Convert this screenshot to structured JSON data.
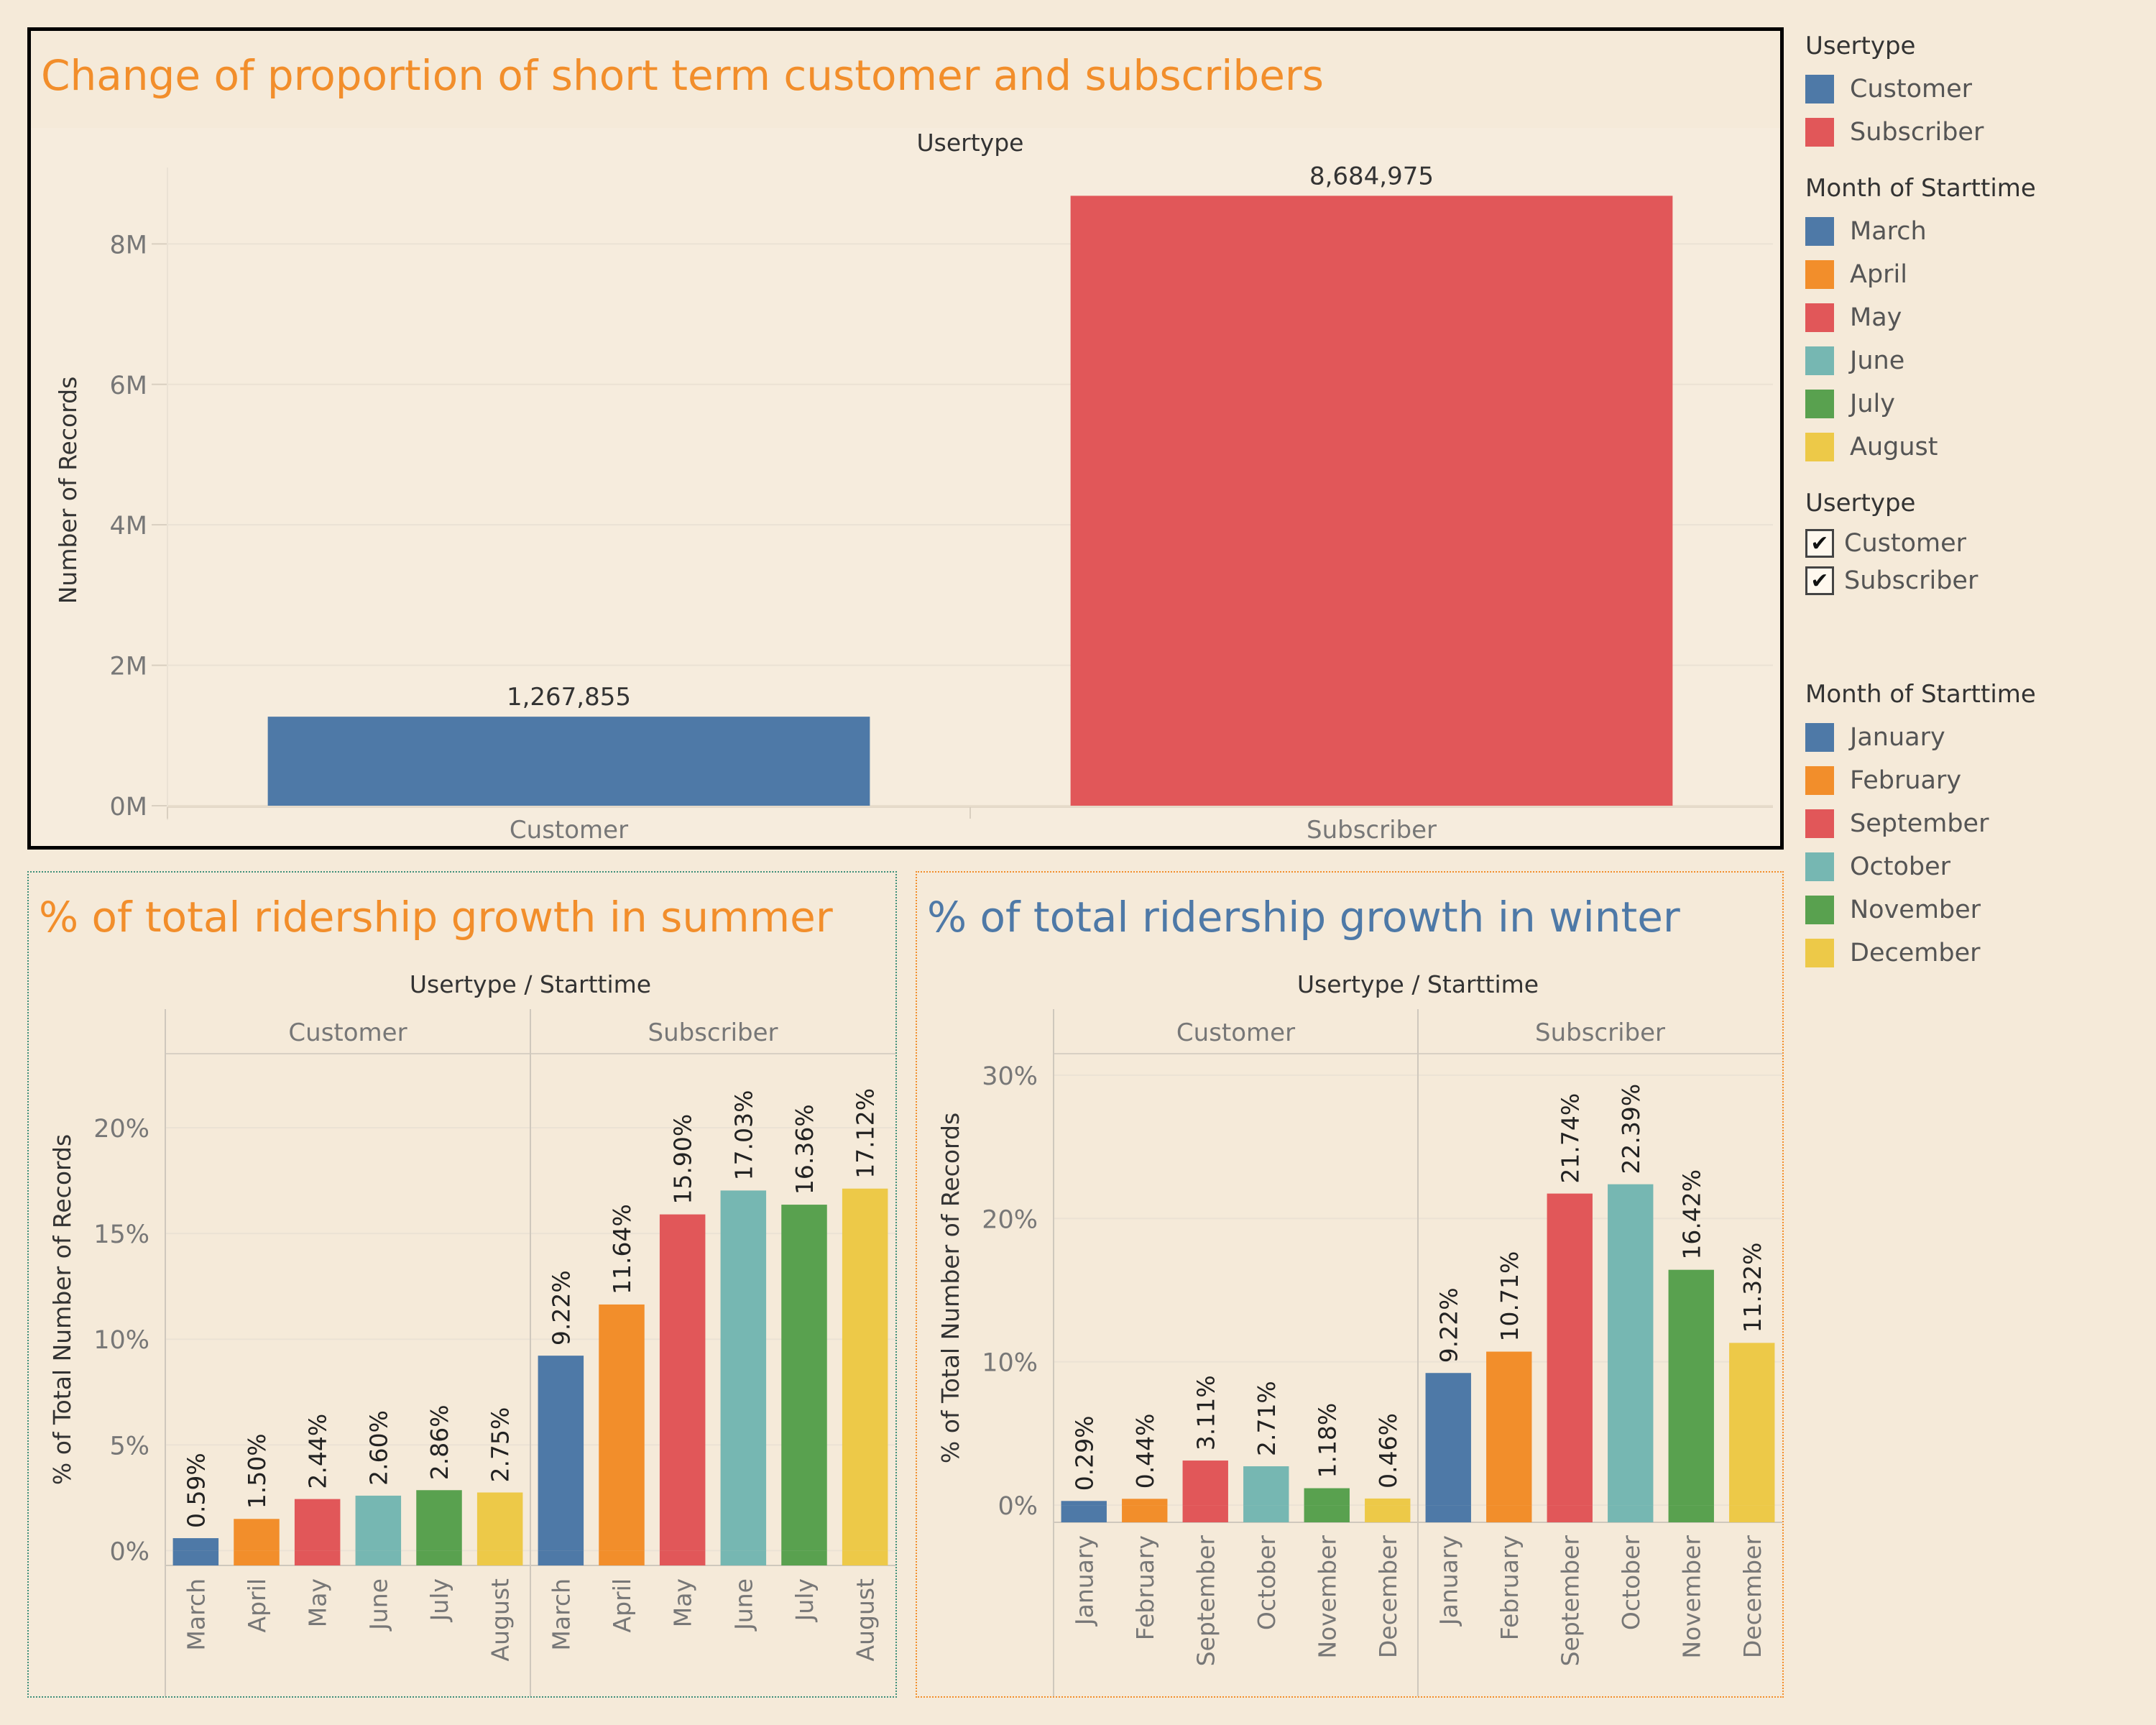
{
  "colors": {
    "blue": "#4e79a7",
    "orange": "#f28e2b",
    "red": "#e15759",
    "teal": "#76b7b2",
    "green": "#59a14f",
    "yellow": "#edc948",
    "title_orange": "#f28e2b",
    "title_blue": "#4e79a7"
  },
  "legends": {
    "usertype_color": {
      "title": "Usertype",
      "items": [
        {
          "label": "Customer",
          "color": "#4e79a7"
        },
        {
          "label": "Subscriber",
          "color": "#e15759"
        }
      ]
    },
    "month_summer": {
      "title": "Month of Starttime",
      "items": [
        {
          "label": "March",
          "color": "#4e79a7"
        },
        {
          "label": "April",
          "color": "#f28e2b"
        },
        {
          "label": "May",
          "color": "#e15759"
        },
        {
          "label": "June",
          "color": "#76b7b2"
        },
        {
          "label": "July",
          "color": "#59a14f"
        },
        {
          "label": "August",
          "color": "#edc948"
        }
      ]
    },
    "usertype_filter": {
      "title": "Usertype",
      "items": [
        {
          "label": "Customer",
          "checked": true,
          "mark": "✔"
        },
        {
          "label": "Subscriber",
          "checked": true,
          "mark": "✔"
        }
      ]
    },
    "month_winter": {
      "title": "Month of Starttime",
      "items": [
        {
          "label": "January",
          "color": "#4e79a7"
        },
        {
          "label": "February",
          "color": "#f28e2b"
        },
        {
          "label": "September",
          "color": "#e15759"
        },
        {
          "label": "October",
          "color": "#76b7b2"
        },
        {
          "label": "November",
          "color": "#59a14f"
        },
        {
          "label": "December",
          "color": "#edc948"
        }
      ]
    }
  },
  "chart_data": [
    {
      "type": "bar",
      "title": "Change of proportion of short term customer and subscribers",
      "column_header": "Usertype",
      "categories": [
        "Customer",
        "Subscriber"
      ],
      "values": [
        1267855,
        8684975
      ],
      "value_labels": [
        "1,267,855",
        "8,684,975"
      ],
      "colors": [
        "#4e79a7",
        "#e15759"
      ],
      "ylabel": "Number of Records",
      "yticks": [
        0,
        2000000,
        4000000,
        6000000,
        8000000
      ],
      "ytick_labels": [
        "0M",
        "2M",
        "4M",
        "6M",
        "8M"
      ],
      "ylim": [
        0,
        9600000
      ],
      "grid": true
    },
    {
      "type": "bar",
      "title": "% of total ridership growth in summer",
      "column_header": "Usertype  /  Starttime",
      "groups": [
        {
          "name": "Customer",
          "months": [
            "March",
            "April",
            "May",
            "June",
            "July",
            "August"
          ],
          "values": [
            0.59,
            1.5,
            2.44,
            2.6,
            2.86,
            2.75
          ],
          "value_labels": [
            "0.59%",
            "1.50%",
            "2.44%",
            "2.60%",
            "2.86%",
            "2.75%"
          ]
        },
        {
          "name": "Subscriber",
          "months": [
            "March",
            "April",
            "May",
            "June",
            "July",
            "August"
          ],
          "values": [
            9.22,
            11.64,
            15.9,
            17.03,
            16.36,
            17.12
          ],
          "value_labels": [
            "9.22%",
            "11.64%",
            "15.90%",
            "17.03%",
            "16.36%",
            "17.12%"
          ]
        }
      ],
      "colors": [
        "#4e79a7",
        "#f28e2b",
        "#e15759",
        "#76b7b2",
        "#59a14f",
        "#edc948"
      ],
      "ylabel": "% of Total Number of Records",
      "yticks": [
        0,
        5,
        10,
        15,
        20
      ],
      "ytick_labels": [
        "0%",
        "5%",
        "10%",
        "15%",
        "20%"
      ],
      "ylim": [
        -0.7,
        23.5
      ],
      "grid": true
    },
    {
      "type": "bar",
      "title": "% of total ridership growth in winter",
      "column_header": "Usertype  /  Starttime",
      "groups": [
        {
          "name": "Customer",
          "months": [
            "January",
            "February",
            "September",
            "October",
            "November",
            "December"
          ],
          "values": [
            0.29,
            0.44,
            3.11,
            2.71,
            1.18,
            0.46
          ],
          "value_labels": [
            "0.29%",
            "0.44%",
            "3.11%",
            "2.71%",
            "1.18%",
            "0.46%"
          ]
        },
        {
          "name": "Subscriber",
          "months": [
            "January",
            "February",
            "September",
            "October",
            "November",
            "December"
          ],
          "values": [
            9.22,
            10.71,
            21.74,
            22.39,
            16.42,
            11.32
          ],
          "value_labels": [
            "9.22%",
            "10.71%",
            "21.74%",
            "22.39%",
            "16.42%",
            "11.32%"
          ]
        }
      ],
      "colors": [
        "#4e79a7",
        "#f28e2b",
        "#e15759",
        "#76b7b2",
        "#59a14f",
        "#edc948"
      ],
      "ylabel": "% of Total Number of Records",
      "yticks": [
        0,
        10,
        20,
        30
      ],
      "ytick_labels": [
        "0%",
        "10%",
        "20%",
        "30%"
      ],
      "ylim": [
        -1.2,
        31.5
      ],
      "grid": true
    }
  ]
}
